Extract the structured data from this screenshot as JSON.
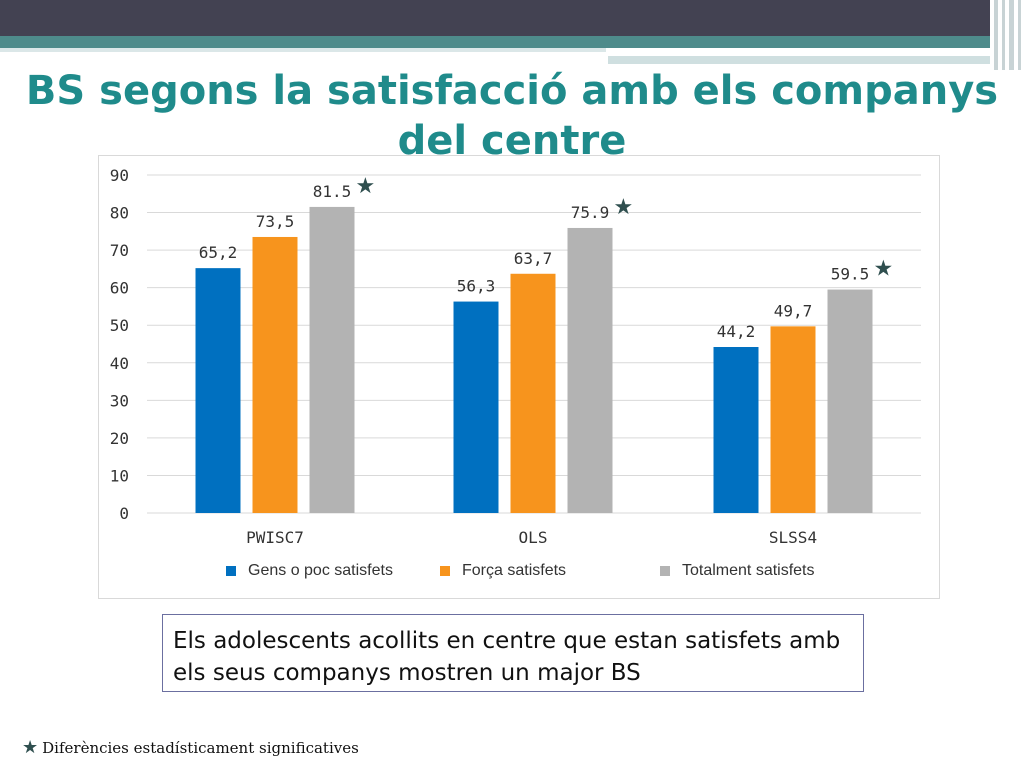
{
  "slide": {
    "title": "BS segons la satisfacció amb els companys del centre",
    "callout": "Els adolescents acollits en centre que estan satisfets amb els seus companys mostren un major BS",
    "footnote": "Diferències estadísticament significatives",
    "star_icon": "star-icon"
  },
  "colors": {
    "series_1": "#0070c0",
    "series_2": "#f7941d",
    "series_3": "#b3b3b3",
    "title": "#1f8b8b",
    "star": "#2f4f4f"
  },
  "chart_data": {
    "type": "bar",
    "title": "",
    "xlabel": "",
    "ylabel": "",
    "ylim": [
      0,
      90
    ],
    "yticks": [
      0,
      10,
      20,
      30,
      40,
      50,
      60,
      70,
      80,
      90
    ],
    "grid": true,
    "legend_position": "bottom",
    "categories": [
      "PWISC7",
      "OLS",
      "SLSS4"
    ],
    "series": [
      {
        "name": "Gens o poc satisfets",
        "values": [
          65.2,
          56.3,
          44.2
        ],
        "labels": [
          "65,2",
          "56,3",
          "44,2"
        ]
      },
      {
        "name": "Força satisfets",
        "values": [
          73.5,
          63.7,
          49.7
        ],
        "labels": [
          "73,5",
          "63,7",
          "49,7"
        ]
      },
      {
        "name": "Totalment satisfets",
        "values": [
          81.5,
          75.9,
          59.5
        ],
        "labels": [
          "81.5",
          "75.9",
          "59.5"
        ]
      }
    ],
    "significant": [
      true,
      true,
      true
    ]
  }
}
